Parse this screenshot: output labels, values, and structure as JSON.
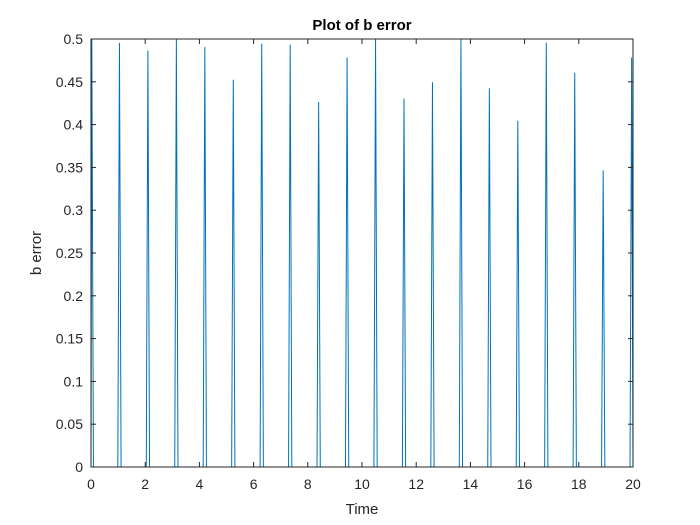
{
  "chart_data": {
    "type": "line",
    "title": "Plot of b error",
    "xlabel": "Time",
    "ylabel": "b error",
    "xlim": [
      0,
      20
    ],
    "ylim": [
      0,
      0.5
    ],
    "xticks": [
      "0",
      "2",
      "4",
      "6",
      "8",
      "10",
      "12",
      "14",
      "16",
      "18",
      "20"
    ],
    "yticks": [
      "0",
      "0.05",
      "0.1",
      "0.15",
      "0.2",
      "0.25",
      "0.3",
      "0.35",
      "0.4",
      "0.45",
      "0.5"
    ],
    "grid": false,
    "legend": "none",
    "series": [
      {
        "color": "#0072BD",
        "peaks": [
          {
            "t": 0.03,
            "value": 0.5
          },
          {
            "t": 1.05,
            "value": 0.495
          },
          {
            "t": 2.1,
            "value": 0.486
          },
          {
            "t": 3.15,
            "value": 0.5
          },
          {
            "t": 4.2,
            "value": 0.49
          },
          {
            "t": 5.25,
            "value": 0.452
          },
          {
            "t": 6.3,
            "value": 0.494
          },
          {
            "t": 7.35,
            "value": 0.493
          },
          {
            "t": 8.4,
            "value": 0.426
          },
          {
            "t": 9.45,
            "value": 0.478
          },
          {
            "t": 10.5,
            "value": 0.5
          },
          {
            "t": 11.55,
            "value": 0.43
          },
          {
            "t": 12.6,
            "value": 0.449
          },
          {
            "t": 13.65,
            "value": 0.5
          },
          {
            "t": 14.7,
            "value": 0.442
          },
          {
            "t": 15.75,
            "value": 0.404
          },
          {
            "t": 16.8,
            "value": 0.495
          },
          {
            "t": 17.85,
            "value": 0.46
          },
          {
            "t": 18.9,
            "value": 0.346
          },
          {
            "t": 19.95,
            "value": 0.478
          }
        ]
      }
    ]
  }
}
